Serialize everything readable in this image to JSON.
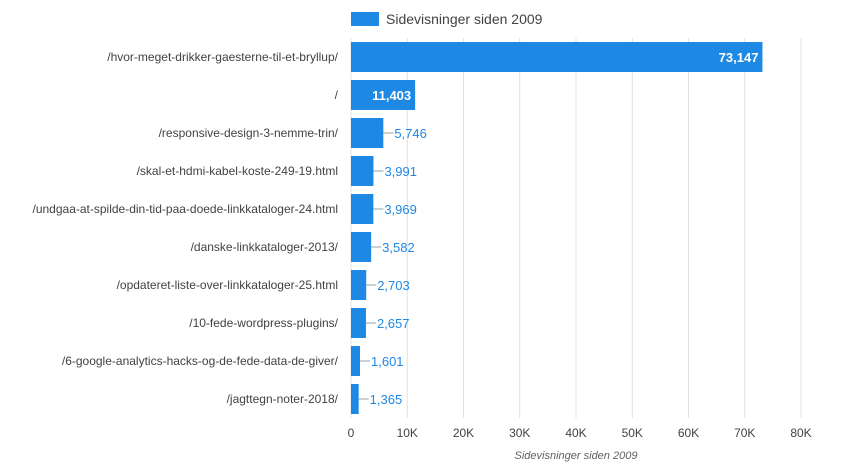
{
  "chart_data": {
    "type": "bar",
    "orientation": "horizontal",
    "categories": [
      "/hvor-meget-drikker-gaesterne-til-et-bryllup/",
      "/",
      "/responsive-design-3-nemme-trin/",
      "/skal-et-hdmi-kabel-koste-249-19.html",
      "/undgaa-at-spilde-din-tid-paa-doede-linkkataloger-24.html",
      "/danske-linkkataloger-2013/",
      "/opdateret-liste-over-linkkataloger-25.html",
      "/10-fede-wordpress-plugins/",
      "/6-google-analytics-hacks-og-de-fede-data-de-giver/",
      "/jagttegn-noter-2018/"
    ],
    "series": [
      {
        "name": "Sidevisninger siden 2009",
        "values": [
          73147,
          11403,
          5746,
          3991,
          3969,
          3582,
          2703,
          2657,
          1601,
          1365
        ],
        "labels": [
          "73,147",
          "11,403",
          "5,746",
          "3,991",
          "3,969",
          "3,582",
          "2,703",
          "2,657",
          "1,601",
          "1,365"
        ]
      }
    ],
    "xlabel": "Sidevisninger siden 2009",
    "xlim": [
      0,
      80000
    ],
    "xticks": [
      0,
      10000,
      20000,
      30000,
      40000,
      50000,
      60000,
      70000,
      80000
    ],
    "xtick_labels": [
      "0",
      "10K",
      "20K",
      "30K",
      "40K",
      "50K",
      "60K",
      "70K",
      "80K"
    ],
    "grid": true,
    "legend_position": "top",
    "colors": {
      "bar": "#1e88e5",
      "grid": "#e0e0e0",
      "text": "#424242"
    }
  }
}
